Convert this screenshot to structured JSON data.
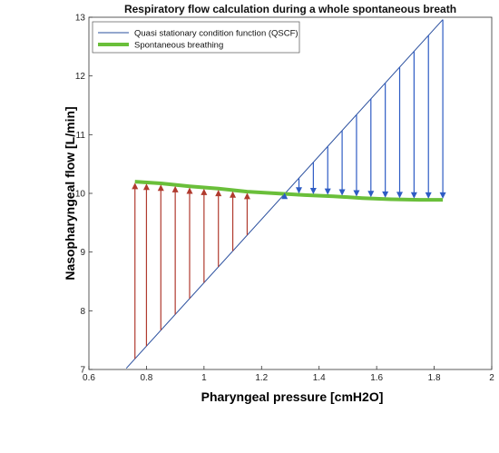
{
  "chart_data": {
    "type": "line",
    "title": "Respiratory flow calculation during a whole spontaneous breath",
    "xlabel": "Pharyngeal pressure [cmH2O]",
    "ylabel": "Nasopharyngeal flow [L/min]",
    "xlim": [
      0.6,
      2.0
    ],
    "ylim": [
      7,
      13
    ],
    "xticks": [
      0.6,
      0.8,
      1.0,
      1.2,
      1.4,
      1.6,
      1.8,
      2.0
    ],
    "xtick_labels": [
      "0.6",
      "0.8",
      "1",
      "1.2",
      "1.4",
      "1.6",
      "1.8",
      "2"
    ],
    "yticks": [
      7,
      8,
      9,
      10,
      11,
      12,
      13
    ],
    "ytick_labels": [
      "7",
      "8",
      "9",
      "10",
      "11",
      "12",
      "13"
    ],
    "legend_position": "top-left",
    "grid": false,
    "series": [
      {
        "name": "Quasi stationary condition function (QSCF)",
        "color": "#2a4f9e",
        "x": [
          0.73,
          1.83
        ],
        "y": [
          7.02,
          12.96
        ]
      },
      {
        "name": "Spontaneous breathing",
        "color": "#6abf3a",
        "x": [
          0.76,
          0.85,
          0.95,
          1.05,
          1.15,
          1.25,
          1.35,
          1.45,
          1.55,
          1.65,
          1.75,
          1.83
        ],
        "y": [
          10.2,
          10.17,
          10.12,
          10.08,
          10.03,
          10.0,
          9.97,
          9.95,
          9.92,
          9.9,
          9.89,
          9.89
        ]
      }
    ],
    "arrows_up": {
      "color": "#b03a2e",
      "x": [
        0.76,
        0.8,
        0.85,
        0.9,
        0.95,
        1.0,
        1.05,
        1.1,
        1.15
      ]
    },
    "arrows_down": {
      "color": "#2e5cc4",
      "x": [
        1.28,
        1.33,
        1.38,
        1.43,
        1.48,
        1.53,
        1.58,
        1.63,
        1.68,
        1.73,
        1.78,
        1.83
      ]
    }
  }
}
